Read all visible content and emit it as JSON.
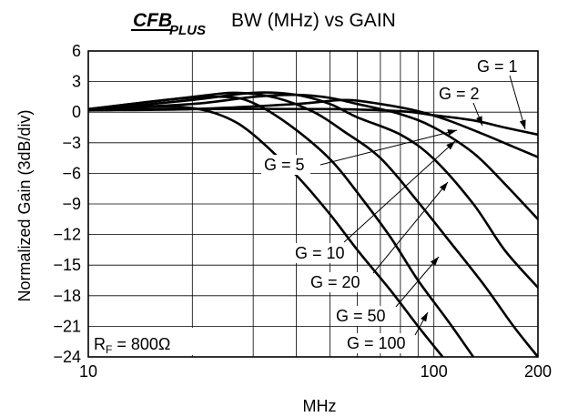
{
  "chart_data": {
    "type": "line",
    "logo": "CFB PLUS",
    "title": "BW (MHz) vs GAIN",
    "xlabel": "MHz",
    "ylabel": "Normalized Gain (3dB/div)",
    "x_scale": "log",
    "xlim": [
      10,
      200
    ],
    "ylim": [
      -24,
      6
    ],
    "grid": true,
    "x_ticks": [
      "10",
      "100",
      "200"
    ],
    "y_ticks": [
      "6",
      "3",
      "0",
      "−3",
      "−6",
      "−9",
      "−12",
      "−15",
      "−18",
      "−21",
      "−24"
    ],
    "annotation_rf": {
      "main": "R",
      "sub": "F",
      "rest": " = 800Ω"
    },
    "series": [
      {
        "name": "G = 1",
        "points": [
          [
            10,
            0.2
          ],
          [
            20,
            0.3
          ],
          [
            50,
            0.3
          ],
          [
            80,
            0.1
          ],
          [
            100,
            -0.3
          ],
          [
            130,
            -0.8
          ],
          [
            160,
            -1.5
          ],
          [
            200,
            -2.2
          ]
        ]
      },
      {
        "name": "G = 2",
        "points": [
          [
            10,
            0.2
          ],
          [
            20,
            0.3
          ],
          [
            40,
            0.8
          ],
          [
            55,
            1.2
          ],
          [
            70,
            0.8
          ],
          [
            90,
            0.1
          ],
          [
            110,
            -0.8
          ],
          [
            140,
            -2.2
          ],
          [
            170,
            -3.4
          ],
          [
            200,
            -4.4
          ]
        ]
      },
      {
        "name": "G = 5",
        "points": [
          [
            10,
            0.3
          ],
          [
            20,
            0.8
          ],
          [
            30,
            1.5
          ],
          [
            40,
            1.7
          ],
          [
            50,
            1.4
          ],
          [
            60,
            0.8
          ],
          [
            80,
            -0.2
          ],
          [
            100,
            -1.5
          ],
          [
            130,
            -4
          ],
          [
            160,
            -7
          ],
          [
            200,
            -10.5
          ]
        ]
      },
      {
        "name": "G = 10",
        "points": [
          [
            10,
            0.2
          ],
          [
            20,
            1.2
          ],
          [
            30,
            1.9
          ],
          [
            40,
            1.7
          ],
          [
            50,
            0.8
          ],
          [
            60,
            -0.5
          ],
          [
            80,
            -2.2
          ],
          [
            100,
            -4.6
          ],
          [
            130,
            -9
          ],
          [
            160,
            -13.5
          ],
          [
            200,
            -17.2
          ]
        ]
      },
      {
        "name": "G = 20",
        "points": [
          [
            10,
            0.3
          ],
          [
            20,
            1.5
          ],
          [
            27,
            1.9
          ],
          [
            35,
            1.4
          ],
          [
            45,
            0
          ],
          [
            55,
            -1.9
          ],
          [
            70,
            -4.5
          ],
          [
            90,
            -8.8
          ],
          [
            110,
            -12.5
          ],
          [
            140,
            -17
          ],
          [
            170,
            -21
          ],
          [
            200,
            -24
          ]
        ]
      },
      {
        "name": "G = 50",
        "points": [
          [
            10,
            0.3
          ],
          [
            18,
            1.3
          ],
          [
            25,
            1.5
          ],
          [
            30,
            0.9
          ],
          [
            38,
            -1.2
          ],
          [
            50,
            -4.6
          ],
          [
            62,
            -8.5
          ],
          [
            75,
            -12.3
          ],
          [
            90,
            -16.5
          ],
          [
            110,
            -20.5
          ],
          [
            130,
            -24
          ]
        ]
      },
      {
        "name": "G = 100",
        "points": [
          [
            10,
            0.2
          ],
          [
            15,
            0.5
          ],
          [
            20,
            0.4
          ],
          [
            25,
            -0.5
          ],
          [
            30,
            -2.2
          ],
          [
            40,
            -6.2
          ],
          [
            50,
            -10
          ],
          [
            60,
            -13.5
          ],
          [
            75,
            -17.5
          ],
          [
            90,
            -21
          ],
          [
            106,
            -24
          ]
        ]
      }
    ],
    "labels": [
      {
        "text": "G = 1",
        "series": "G = 1"
      },
      {
        "text": "G = 2",
        "series": "G = 2"
      },
      {
        "text": "G = 5",
        "series": "G = 5"
      },
      {
        "text": "G = 10",
        "series": "G = 10"
      },
      {
        "text": "G = 20",
        "series": "G = 20"
      },
      {
        "text": "G = 50",
        "series": "G = 50"
      },
      {
        "text": "G = 100",
        "series": "G = 100"
      }
    ]
  }
}
